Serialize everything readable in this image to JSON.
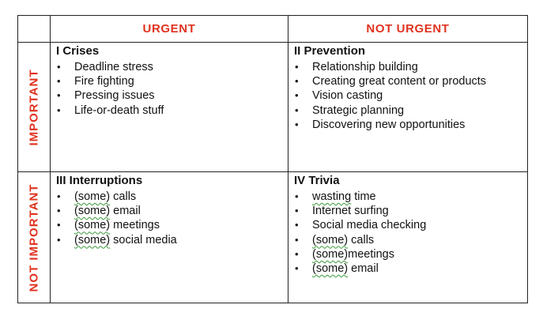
{
  "columns": {
    "urgent": "URGENT",
    "not_urgent": "NOT URGENT"
  },
  "rows": {
    "important": "IMPORTANT",
    "not_important": "NOT IMPORTANT"
  },
  "quadrants": {
    "q1": {
      "title": "I Crises",
      "items": [
        {
          "pre": "",
          "sq": "",
          "post": "Deadline stress"
        },
        {
          "pre": "",
          "sq": "",
          "post": "Fire fighting"
        },
        {
          "pre": "",
          "sq": "",
          "post": "Pressing issues"
        },
        {
          "pre": "",
          "sq": "",
          "post": "Life-or-death stuff"
        }
      ]
    },
    "q2": {
      "title": "II Prevention",
      "items": [
        {
          "pre": "",
          "sq": "",
          "post": "Relationship building"
        },
        {
          "pre": "",
          "sq": "",
          "post": "Creating great content or products"
        },
        {
          "pre": "",
          "sq": "",
          "post": "Vision casting"
        },
        {
          "pre": "",
          "sq": "",
          "post": "Strategic planning"
        },
        {
          "pre": "",
          "sq": "",
          "post": "Discovering new opportunities"
        }
      ]
    },
    "q3": {
      "title": "III Interruptions",
      "items": [
        {
          "pre": "",
          "sq": "(some)",
          "post": " calls"
        },
        {
          "pre": "",
          "sq": "(some)",
          "post": " email"
        },
        {
          "pre": "",
          "sq": "(some)",
          "post": " meetings"
        },
        {
          "pre": "",
          "sq": "(some)",
          "post": " social media"
        }
      ]
    },
    "q4": {
      "title": "IV Trivia",
      "items": [
        {
          "pre": "",
          "sq": "wasting",
          "post": " time"
        },
        {
          "pre": "",
          "sq": "",
          "post": "Internet surfing"
        },
        {
          "pre": "",
          "sq": "",
          "post": "Social media checking"
        },
        {
          "pre": "",
          "sq": "(some)",
          "post": " calls"
        },
        {
          "pre": "",
          "sq": "(some)",
          "post": "meetings"
        },
        {
          "pre": "",
          "sq": "(some)",
          "post": " email"
        }
      ]
    }
  },
  "bullet_char": "•",
  "colors": {
    "header_red": "#e0321f",
    "border": "#222222",
    "spellcheck_underline": "#3a9a3a"
  }
}
